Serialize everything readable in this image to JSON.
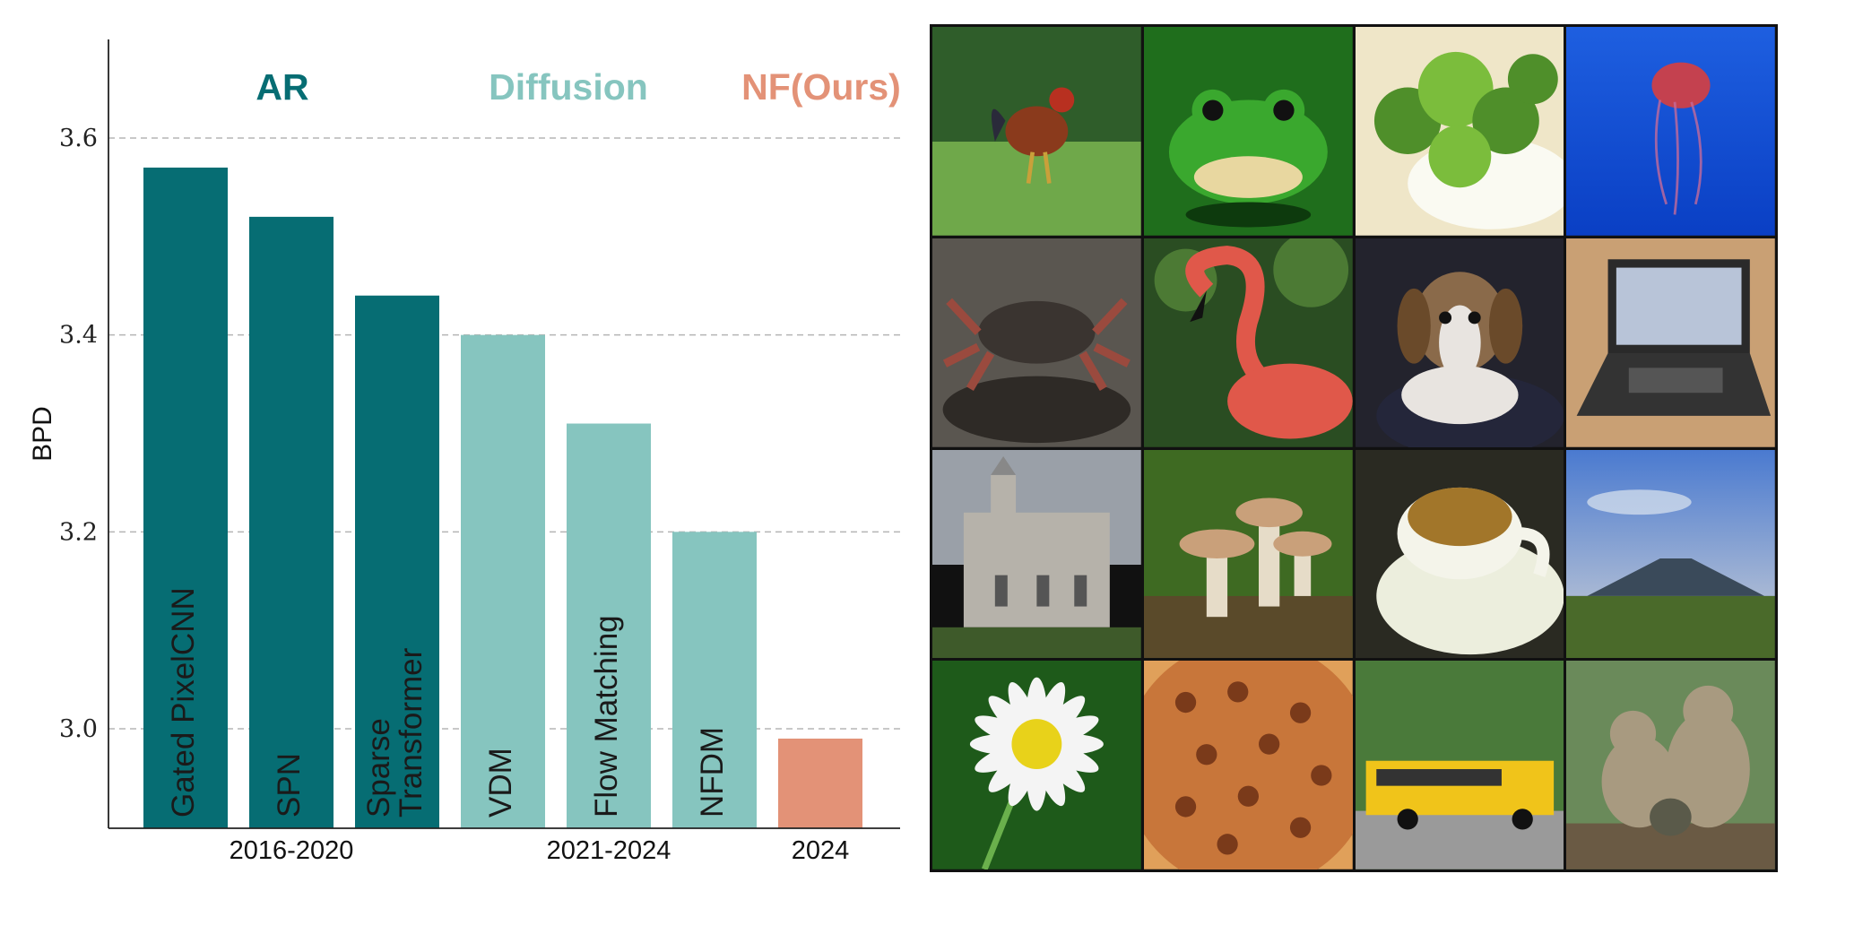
{
  "chart_data": {
    "type": "bar",
    "ylabel": "BPD",
    "ylim": [
      2.9,
      3.7
    ],
    "yticks": [
      "3.0",
      "3.2",
      "3.4",
      "3.6"
    ],
    "ytick_values": [
      3.0,
      3.2,
      3.4,
      3.6
    ],
    "grid": "horizontal dashed",
    "groups": [
      {
        "label": "AR",
        "period": "2016-2020",
        "color": "#066d73"
      },
      {
        "label": "Diffusion",
        "period": "2021-2024",
        "color": "#86c5bf"
      },
      {
        "label": "NF(Ours)",
        "period": "2024",
        "color": "#e39277"
      }
    ],
    "bars": [
      {
        "name": "Gated PixelCNN",
        "value": 3.57,
        "group": 0
      },
      {
        "name": "SPN",
        "value": 3.52,
        "group": 0
      },
      {
        "name": "Sparse Transformer",
        "value": 3.44,
        "group": 0
      },
      {
        "name": "VDM",
        "value": 3.4,
        "group": 1
      },
      {
        "name": "Flow Matching",
        "value": 3.31,
        "group": 1
      },
      {
        "name": "NFDM",
        "value": 3.2,
        "group": 1
      },
      {
        "name": "",
        "value": 2.99,
        "group": 2
      }
    ]
  },
  "samples": [
    {
      "id": "rooster",
      "colors": [
        "#2f5d2a",
        "#6fa84a",
        "#8a3a1c"
      ]
    },
    {
      "id": "frog",
      "colors": [
        "#1f6e1c",
        "#3aa82e",
        "#c9a23a"
      ]
    },
    {
      "id": "broccoli",
      "colors": [
        "#efe6c8",
        "#4f8f2a",
        "#7bbd3c"
      ]
    },
    {
      "id": "jellyfish",
      "colors": [
        "#0a3fc4",
        "#1e5fe0",
        "#c4414f"
      ]
    },
    {
      "id": "crab",
      "colors": [
        "#5a5650",
        "#3a3430",
        "#9a4a3e"
      ]
    },
    {
      "id": "flamingo",
      "colors": [
        "#2a4d22",
        "#4c7a34",
        "#e0584a"
      ]
    },
    {
      "id": "beagle",
      "colors": [
        "#23232d",
        "#8a6a4a",
        "#e8e4e0"
      ]
    },
    {
      "id": "laptop",
      "colors": [
        "#c9a074",
        "#2a2a2a",
        "#b8c4d8"
      ]
    },
    {
      "id": "cathedral",
      "colors": [
        "#9aa0a8",
        "#b6b2aa",
        "#3e5a2a"
      ]
    },
    {
      "id": "mushrooms",
      "colors": [
        "#3e6a22",
        "#c9a07a",
        "#e6dcc8"
      ]
    },
    {
      "id": "coffee",
      "colors": [
        "#2a2a22",
        "#eceedd",
        "#a2762a"
      ]
    },
    {
      "id": "volcano",
      "colors": [
        "#4a7ad0",
        "#a8b8d4",
        "#4a6a2a"
      ]
    },
    {
      "id": "daisy",
      "colors": [
        "#1e5a1a",
        "#f4f4f4",
        "#e8d21a"
      ]
    },
    {
      "id": "pizza",
      "colors": [
        "#c8763a",
        "#e0a05a",
        "#7a3a1a"
      ]
    },
    {
      "id": "school-bus",
      "colors": [
        "#4a7a3a",
        "#f0c41a",
        "#9a9a9a"
      ]
    },
    {
      "id": "baboons",
      "colors": [
        "#6a8a5a",
        "#a89a80",
        "#5a5a4a"
      ]
    }
  ]
}
